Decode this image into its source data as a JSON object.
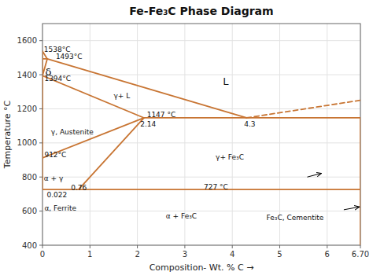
{
  "chart_data": {
    "type": "line",
    "title": "Fe-Fe₃C Phase Diagram",
    "xlabel": "Composition- Wt. % C →",
    "ylabel": "Temperature °C",
    "xlim": [
      0,
      6.7
    ],
    "ylim": [
      400,
      1700
    ],
    "xticks": [
      0,
      1,
      2,
      3,
      4,
      5,
      6,
      {
        "value": 6.7,
        "label": "6.70"
      }
    ],
    "yticks": [
      400,
      600,
      800,
      1000,
      1200,
      1400,
      1600
    ],
    "grid": true,
    "series": [
      {
        "x": [
          0,
          0
        ],
        "values": [
          727,
          1538
        ],
        "color": "#C87533"
      },
      {
        "x": [
          0,
          0.1
        ],
        "values": [
          1538,
          1493
        ],
        "color": "#C87533"
      },
      {
        "x": [
          0,
          0.1
        ],
        "values": [
          1493,
          1493
        ],
        "color": "#C87533"
      },
      {
        "x": [
          0.1,
          4.3
        ],
        "values": [
          1493,
          1147
        ],
        "color": "#C87533"
      },
      {
        "x": [
          0,
          0.1
        ],
        "values": [
          1394,
          1493
        ],
        "color": "#C87533"
      },
      {
        "x": [
          0,
          0
        ],
        "values": [
          912,
          1394
        ],
        "color": "#C87533"
      },
      {
        "x": [
          0,
          2.14
        ],
        "values": [
          1394,
          1147
        ],
        "color": "#C87533"
      },
      {
        "x": [
          0,
          2.14
        ],
        "values": [
          912,
          1147
        ],
        "color": "#C87533"
      },
      {
        "x": [
          2.14,
          6.7
        ],
        "values": [
          1147,
          1147
        ],
        "color": "#C87533"
      },
      {
        "x": [
          0,
          6.7
        ],
        "values": [
          727,
          727
        ],
        "color": "#C87533"
      },
      {
        "x": [
          0.76,
          2.14
        ],
        "values": [
          727,
          1147
        ],
        "color": "#C87533"
      },
      {
        "x": [
          4.3,
          6.7
        ],
        "values": [
          1147,
          1250
        ],
        "color": "#C87533",
        "line_style": "dashed"
      },
      {
        "x": [
          6.7,
          6.7
        ],
        "values": [
          400,
          1147
        ],
        "color": "#C87533"
      }
    ],
    "arrows": [
      {
        "x": [
          6.35,
          6.68
        ],
        "y": [
          608,
          625
        ]
      },
      {
        "x": [
          5.58,
          5.88
        ],
        "y": [
          800,
          822
        ]
      }
    ],
    "annotations": [
      {
        "text": "1538°C",
        "x": 0.03,
        "y": 1550
      },
      {
        "text": "1493°C",
        "x": 0.28,
        "y": 1507
      },
      {
        "text": "δ",
        "x": 0.06,
        "y": 1415
      },
      {
        "text": "1394°C",
        "x": 0.04,
        "y": 1378
      },
      {
        "text": "912°C",
        "x": 0.04,
        "y": 930
      },
      {
        "text": "γ, Austenite",
        "x": 0.18,
        "y": 1065
      },
      {
        "text": "α + γ",
        "x": 0.03,
        "y": 790
      },
      {
        "text": "0.76",
        "x": 0.6,
        "y": 738
      },
      {
        "text": "0.022",
        "x": 0.09,
        "y": 697
      },
      {
        "text": "α, Ferrite",
        "x": 0.04,
        "y": 618
      },
      {
        "text": "γ+ L",
        "x": 1.5,
        "y": 1278
      },
      {
        "text": "L",
        "x": 3.8,
        "y": 1360
      },
      {
        "text": "1147 °C",
        "x": 2.2,
        "y": 1165
      },
      {
        "text": "2.14",
        "x": 2.06,
        "y": 1112
      },
      {
        "text": "4.3",
        "x": 4.25,
        "y": 1112
      },
      {
        "text": "727 °C",
        "x": 3.4,
        "y": 742
      },
      {
        "text": "α + Fe₃C",
        "x": 2.6,
        "y": 572
      },
      {
        "text": "γ+ Fe₃C",
        "x": 3.65,
        "y": 918
      },
      {
        "text": "Fe₃C, Cementite",
        "x": 4.72,
        "y": 560
      }
    ]
  }
}
